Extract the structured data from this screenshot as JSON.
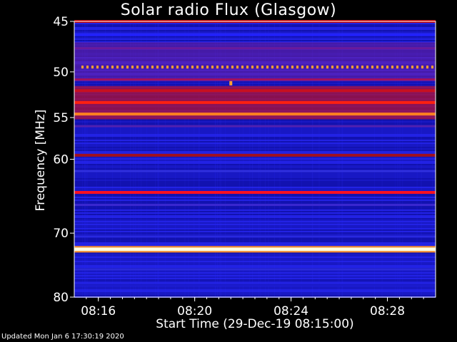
{
  "chart_data": {
    "type": "heatmap",
    "title": "Solar radio Flux (Glasgow)",
    "xlabel": "Start Time (29-Dec-19 08:15:00)",
    "ylabel": "Frequency [MHz]",
    "x_ticks": [
      "08:16",
      "08:20",
      "08:24",
      "08:28"
    ],
    "y_ticks": [
      45,
      50,
      55,
      60,
      70,
      80
    ],
    "ylim": [
      45,
      80
    ],
    "x_range": [
      "08:15:00",
      "08:30:00"
    ],
    "background_color": "#1a1acf",
    "bands": [
      {
        "freq": 45.0,
        "color": "#c00000",
        "intensity": "high"
      },
      {
        "freq": 46.3,
        "color": "#2222ff",
        "intensity": "low"
      },
      {
        "freq": 47.6,
        "color": "#6a1a9a",
        "intensity": "medium"
      },
      {
        "freq": 49.5,
        "color": "#ffa030",
        "intensity": "high",
        "dotted": true
      },
      {
        "freq": 50.8,
        "color": "#a01060",
        "intensity": "medium"
      },
      {
        "freq": 52.0,
        "color": "#c81020",
        "intensity": "high"
      },
      {
        "freq": 53.3,
        "color": "#ff2010",
        "intensity": "high"
      },
      {
        "freq": 54.6,
        "color": "#ff8020",
        "intensity": "high"
      },
      {
        "freq": 56.0,
        "color": "#5020b0",
        "intensity": "medium"
      },
      {
        "freq": 59.5,
        "color": "#a01020",
        "intensity": "high"
      },
      {
        "freq": 61.5,
        "color": "#3030e0",
        "intensity": "low"
      },
      {
        "freq": 64.3,
        "color": "#ff1020",
        "intensity": "high"
      },
      {
        "freq": 66.0,
        "color": "#3a28d0",
        "intensity": "low"
      },
      {
        "freq": 70.5,
        "color": "#2828e0",
        "intensity": "low"
      },
      {
        "freq": 72.4,
        "color": "#ffffe0",
        "intensity": "max"
      },
      {
        "freq": 75.5,
        "color": "#2a2ad8",
        "intensity": "low"
      },
      {
        "freq": 78.0,
        "color": "#1a1ac8",
        "intensity": "low"
      }
    ],
    "burst_spot": {
      "time": "08:21:30",
      "freq": 51.2,
      "color": "#ffa030"
    }
  },
  "footer": "Updated Mon Jan  6 17:30:19 2020"
}
